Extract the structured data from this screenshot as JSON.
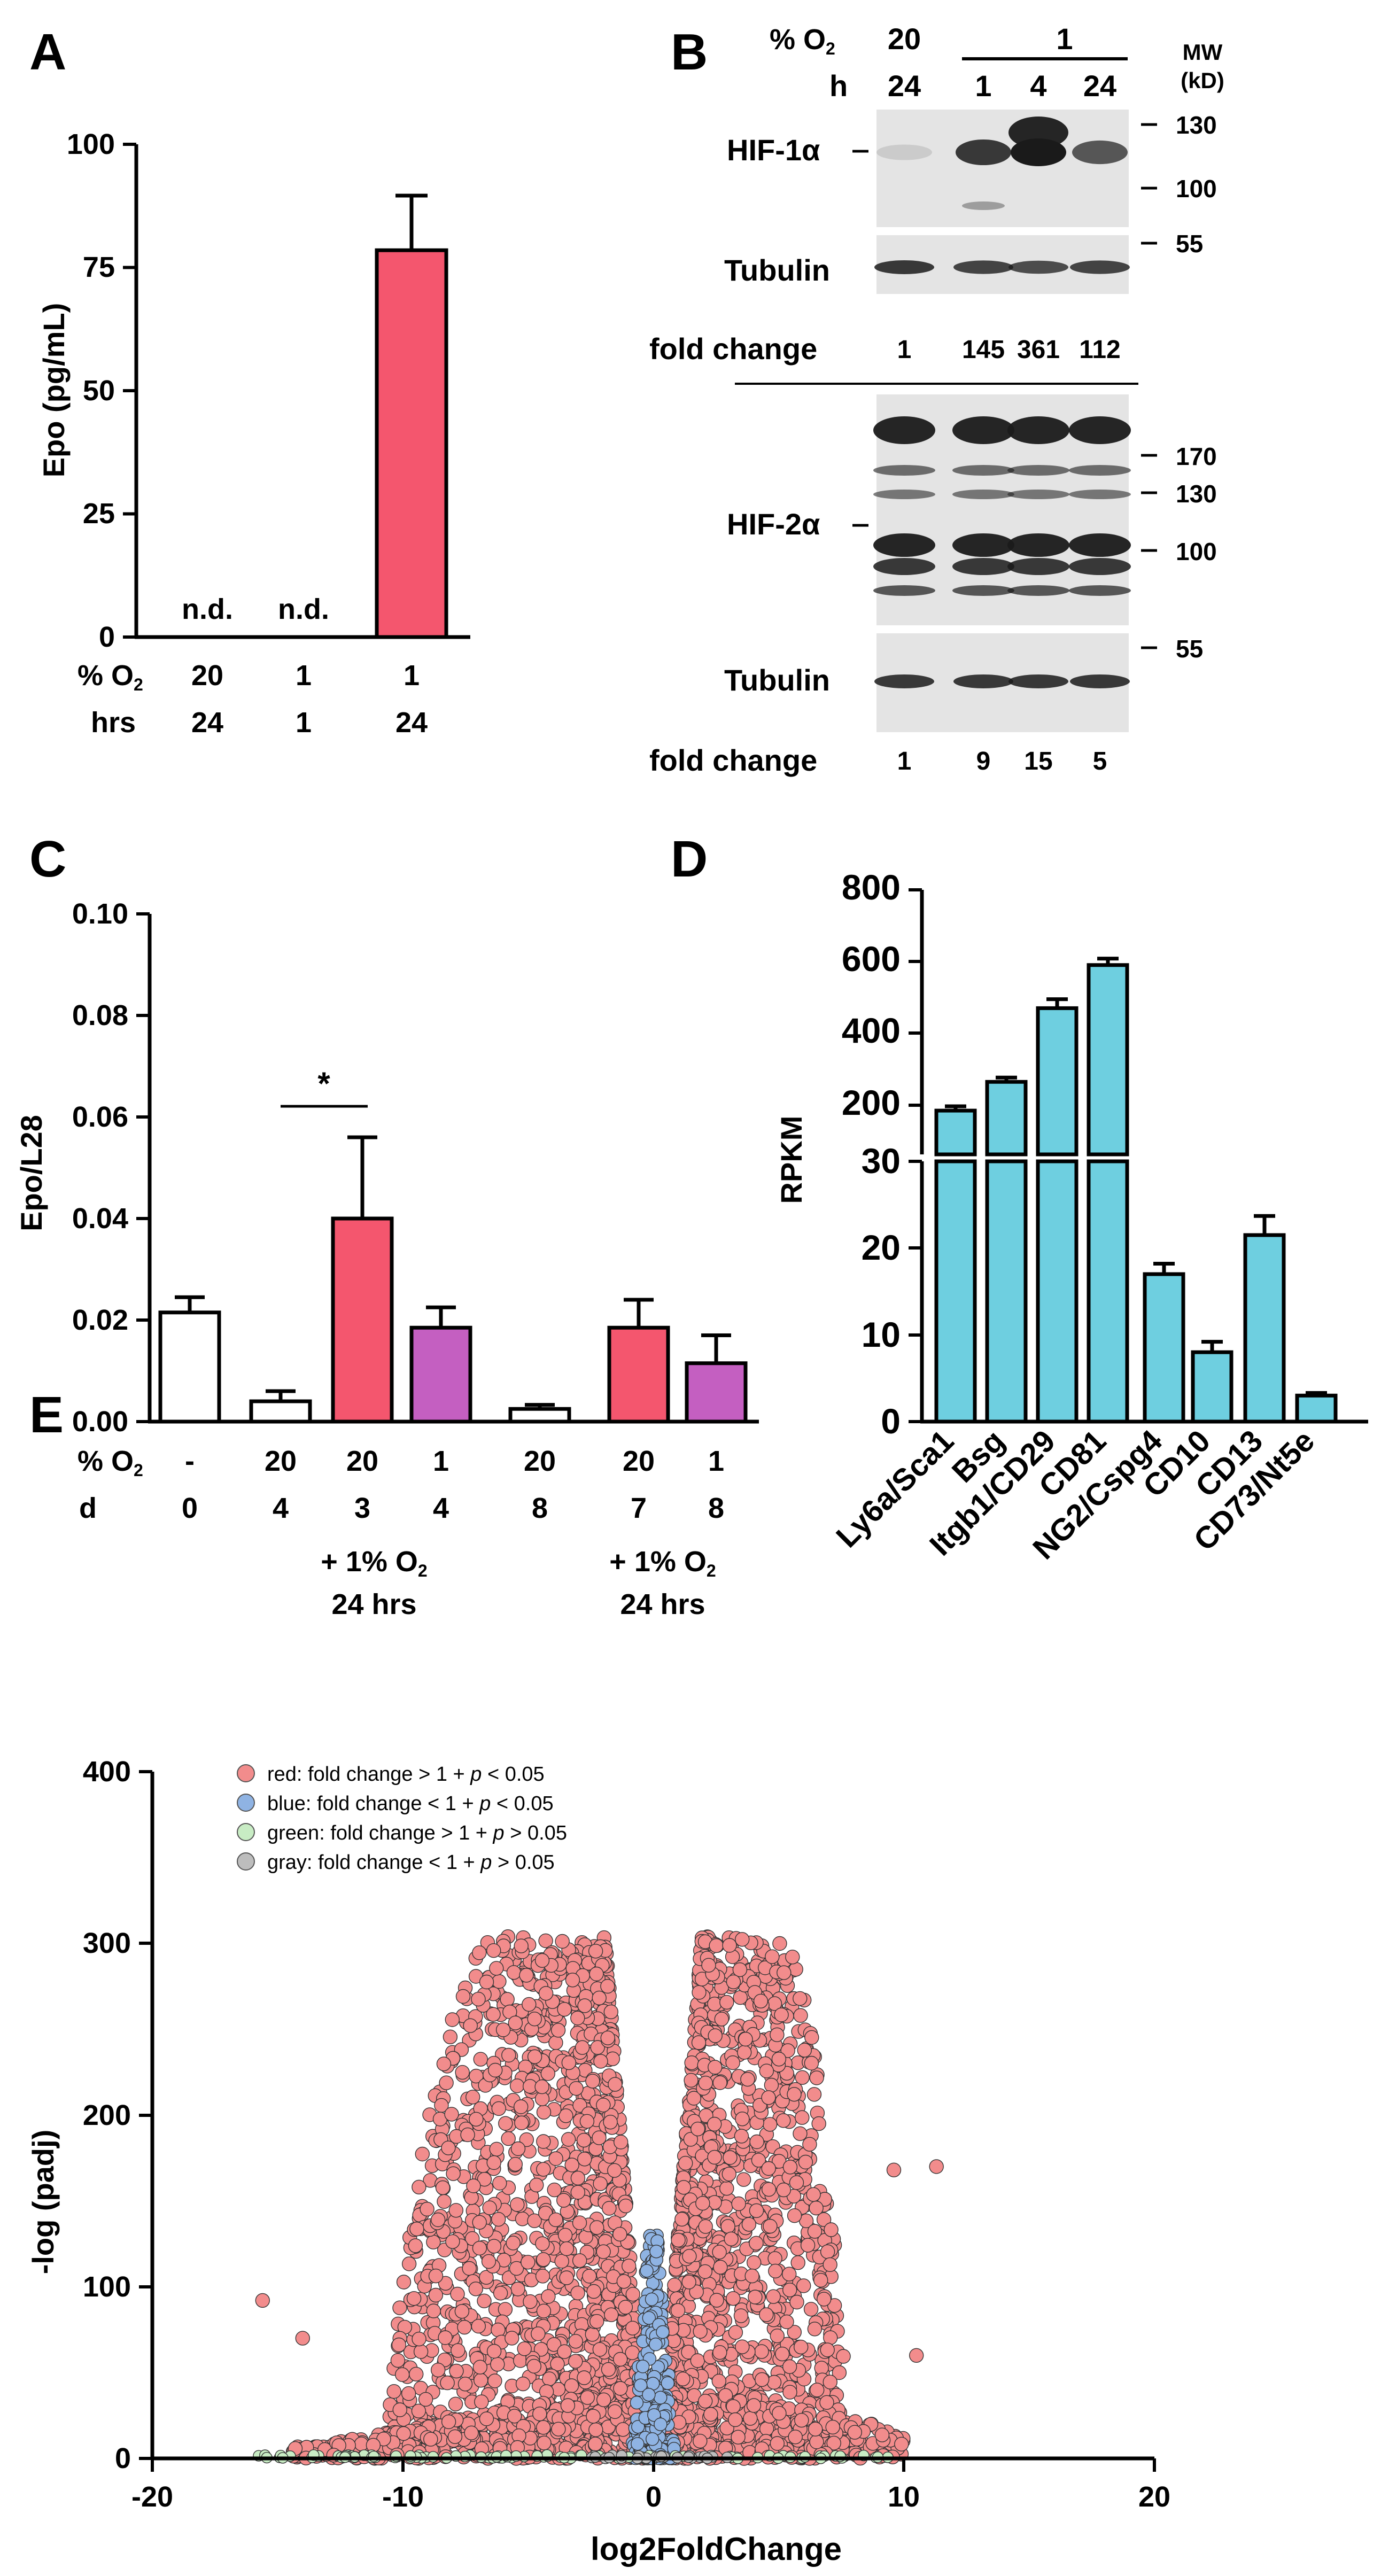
{
  "panel_labels": {
    "a": "A",
    "b": "B",
    "c": "C",
    "d": "D",
    "e": "E"
  },
  "colors": {
    "red": "#f4566e",
    "magenta": "#c45fc1",
    "cyan": "#6ecfe0",
    "volcano_red": "#f28c8c",
    "volcano_blue": "#8fb3e3",
    "volcano_green": "#c8ecc4",
    "volcano_gray": "#bdbdbd",
    "blot_bg": "#e4e4e4",
    "blot_band": "#1a1a1a"
  },
  "chart_data": [
    {
      "id": "A",
      "type": "bar",
      "ylabel": "Epo (pg/mL)",
      "ylim": [
        0,
        100
      ],
      "yticks": [
        "0",
        "25",
        "50",
        "75",
        "100"
      ],
      "categories": [
        "20/24",
        "1/1",
        "1/24"
      ],
      "values": [
        0,
        0,
        78.5
      ],
      "errors": [
        0,
        0,
        11
      ],
      "bar_labels": [
        "n.d.",
        "n.d.",
        ""
      ],
      "row_labels": [
        {
          "name": "% O",
          "sub": "2",
          "values": [
            "20",
            "1",
            "1"
          ]
        },
        {
          "name": "hrs",
          "values": [
            "24",
            "1",
            "24"
          ]
        }
      ]
    },
    {
      "id": "B",
      "type": "table",
      "o2_label": "% O",
      "o2_sub": "2",
      "h_label": "h",
      "o2_values": [
        "20",
        "1"
      ],
      "h_values": [
        "24",
        "1",
        "4",
        "24"
      ],
      "mw_label_1": "MW",
      "mw_label_2": "(kD)",
      "blots": [
        {
          "name": "HIF-1α",
          "markers": [
            "130",
            "100"
          ],
          "band_intensity": [
            0.12,
            0.85,
            1.0,
            0.7
          ]
        },
        {
          "name": "Tubulin",
          "markers": [
            "55"
          ],
          "band_intensity": [
            0.85,
            0.8,
            0.75,
            0.8
          ]
        },
        {
          "name": "HIF-2α",
          "markers": [
            "170",
            "130",
            "100"
          ],
          "band_intensity": [
            0.9,
            0.9,
            0.9,
            0.9
          ]
        },
        {
          "name": "Tubulin",
          "markers": [
            "55"
          ],
          "band_intensity": [
            0.85,
            0.85,
            0.85,
            0.85
          ]
        }
      ],
      "fold_change_label": "fold change",
      "fold_change_hif1": [
        "1",
        "145",
        "361",
        "112"
      ],
      "fold_change_hif2": [
        "1",
        "9",
        "15",
        "5"
      ]
    },
    {
      "id": "C",
      "type": "bar",
      "ylabel": "Epo/L28",
      "ylim": [
        0,
        0.1
      ],
      "yticks": [
        "0.00",
        "0.02",
        "0.04",
        "0.06",
        "0.08",
        "0.10"
      ],
      "values": [
        0.0215,
        0.004,
        0.04,
        0.0185,
        0.0025,
        0.0185,
        0.0115
      ],
      "errors": [
        0.003,
        0.002,
        0.016,
        0.004,
        0.0008,
        0.0055,
        0.0055
      ],
      "bar_colors": [
        "white",
        "white",
        "red",
        "magenta",
        "white",
        "red",
        "magenta"
      ],
      "row_labels": [
        {
          "name": "% O",
          "sub": "2",
          "values": [
            "-",
            "20",
            "20",
            "1",
            "20",
            "20",
            "1"
          ]
        },
        {
          "name": "d",
          "values": [
            "0",
            "4",
            "3",
            "4",
            "8",
            "7",
            "8"
          ]
        }
      ],
      "significance": "*",
      "group_notes": [
        {
          "line1": "+ 1% O",
          "sub": "2",
          "line2": "24 hrs"
        },
        {
          "line1": "+ 1% O",
          "sub": "2",
          "line2": "24 hrs"
        }
      ]
    },
    {
      "id": "D",
      "type": "bar",
      "ylabel": "RPKM",
      "upper_ticks": [
        "200",
        "400",
        "600",
        "800"
      ],
      "lower_ticks": [
        "0",
        "10",
        "20",
        "30"
      ],
      "categories": [
        "Ly6a/Sca1",
        "Bsg",
        "Itgb1/CD29",
        "CD81",
        "NG2/Cspg4",
        "CD10",
        "CD13",
        "CD73/Nt5e"
      ],
      "values": [
        185,
        265,
        470,
        590,
        17,
        8,
        21.5,
        3
      ],
      "errors": [
        12,
        12,
        25,
        18,
        1.2,
        1.2,
        2.2,
        0.3
      ]
    },
    {
      "id": "E",
      "type": "scatter",
      "title": "",
      "xlabel": "log2FoldChange",
      "ylabel": "-log (padj)",
      "xlim": [
        -20,
        20
      ],
      "ylim": [
        0,
        400
      ],
      "xticks": [
        "-20",
        "-10",
        "0",
        "10",
        "20"
      ],
      "yticks": [
        "0",
        "100",
        "200",
        "300",
        "400"
      ],
      "legend_position": "top-left",
      "legend": [
        {
          "color": "red",
          "text": "red: fold change > 1 + ",
          "p": "p",
          "cond": " < 0.05"
        },
        {
          "color": "blue",
          "text": "blue: fold change < 1 + ",
          "p": "p",
          "cond": " < 0.05"
        },
        {
          "color": "green",
          "text": "green: fold change > 1 + ",
          "p": "p",
          "cond": " > 0.05"
        },
        {
          "color": "gray",
          "text": "gray: fold change < 1 + ",
          "p": "p",
          "cond": " > 0.05"
        }
      ],
      "outliers": [
        [
          11.3,
          170
        ],
        [
          10.5,
          60
        ],
        [
          -15.6,
          92
        ],
        [
          9.6,
          168
        ],
        [
          -14.0,
          70
        ]
      ]
    }
  ]
}
